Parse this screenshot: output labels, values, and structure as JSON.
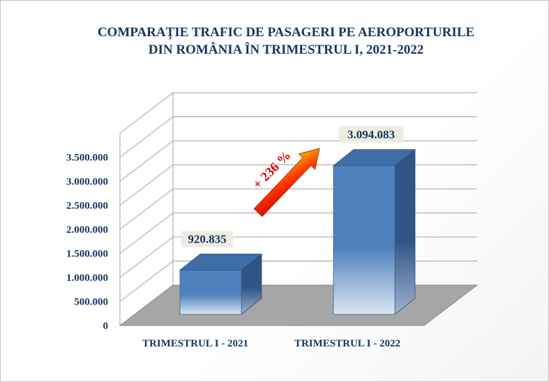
{
  "chart_data": {
    "type": "bar",
    "title_lines": [
      "COMPARAȚIE TRAFIC DE PASAGERI PE AEROPORTURILE",
      "DIN ROMÂNIA ÎN TRIMESTRUL I, 2021-2022"
    ],
    "categories": [
      "TRIMESTRUL I - 2021",
      "TRIMESTRUL I - 2022"
    ],
    "values": [
      920835,
      3094083
    ],
    "value_labels": [
      "920.835",
      "3.094.083"
    ],
    "y_ticks": [
      "0",
      "500.000",
      "1.000.000",
      "1.500.000",
      "2.000.000",
      "2.500.000",
      "3.000.000",
      "3.500.000"
    ],
    "ylim": [
      0,
      4000000
    ],
    "annotation": "+ 236 %",
    "grid": true,
    "legend": "none",
    "colors": {
      "bar_top": "#4f81bd",
      "bar_bottom": "#dce6f2",
      "bar_side": "#2f5486",
      "floor": "#a6a6a6",
      "text": "#17365d",
      "arrow": "#ff6600",
      "annotation": "#cc0000",
      "label_bg": "#eeece1"
    }
  }
}
